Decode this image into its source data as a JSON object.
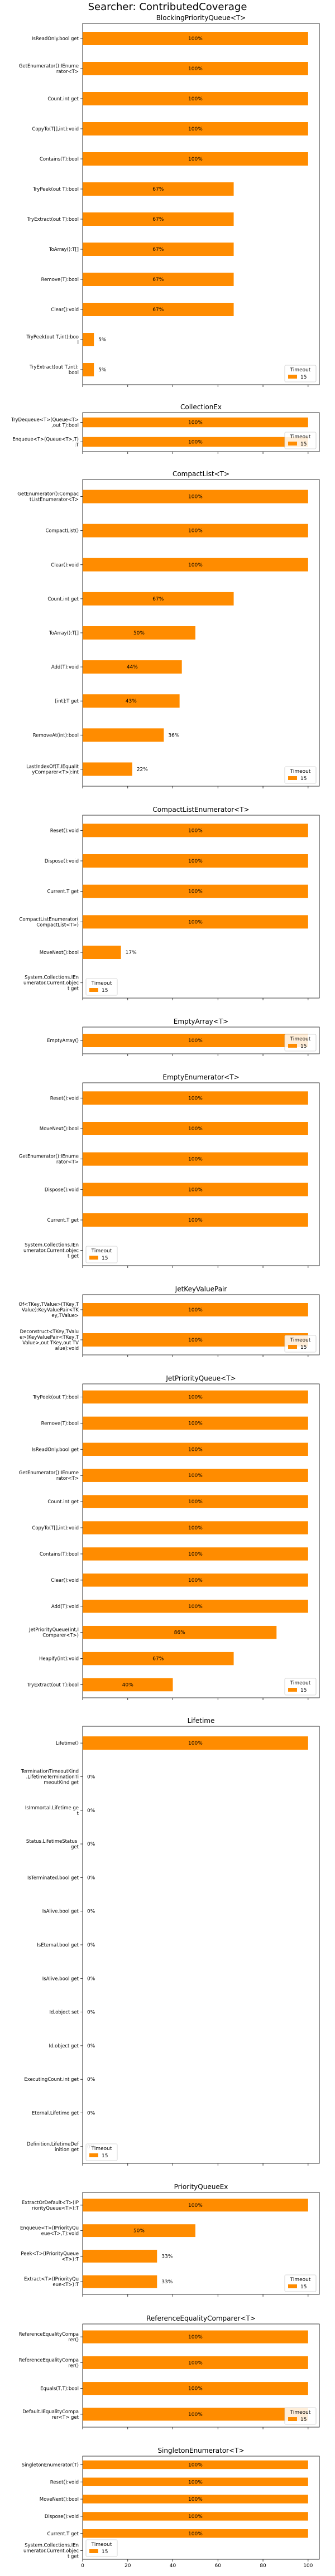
{
  "chart_data": {
    "type": "bar",
    "orientation": "horizontal",
    "title": "Searcher: ContributedCoverage",
    "series_color": "#ff8c00",
    "legend": {
      "title": "Timeout",
      "entries": [
        "15"
      ]
    },
    "xlim": [
      0,
      105
    ],
    "xticks": [
      0,
      20,
      40,
      60,
      80,
      100
    ],
    "panels": [
      {
        "title": "BlockingPriorityQueue<T>",
        "categories": [
          "IsReadOnly.bool get",
          "GetEnumerator():IEnumerator<T>",
          "Count.int get",
          "CopyTo(T[],int):void",
          "Contains(T):bool",
          "TryPeek(out T):bool",
          "TryExtract(out T):bool",
          "ToArray():T[]",
          "Remove(T):bool",
          "Clear():void",
          "TryPeek(out T,int):bool",
          "TryExtract(out T,int):bool"
        ],
        "values": [
          100,
          100,
          100,
          100,
          100,
          67,
          67,
          67,
          67,
          67,
          5,
          5
        ],
        "labels": [
          "100%",
          "100%",
          "100%",
          "100%",
          "100%",
          "67%",
          "67%",
          "67%",
          "67%",
          "67%",
          "5%",
          "5%"
        ]
      },
      {
        "title": "CollectionEx",
        "categories": [
          "TryDequeue<T>(Queue<T>,out T):bool",
          "Enqueue<T>(Queue<T>,T):T"
        ],
        "values": [
          100,
          100
        ],
        "labels": [
          "100%",
          "100%"
        ]
      },
      {
        "title": "CompactList<T>",
        "categories": [
          "GetEnumerator():CompactListEnumerator<T>",
          "CompactList()",
          "Clear():void",
          "Count.int get",
          "ToArray():T[]",
          "Add(T):void",
          "[int]:T get",
          "RemoveAt(int):bool",
          "LastIndexOf(T,IEqualityComparer<T>):int"
        ],
        "values": [
          100,
          100,
          100,
          67,
          50,
          44,
          43,
          36,
          22
        ],
        "labels": [
          "100%",
          "100%",
          "100%",
          "67%",
          "50%",
          "44%",
          "43%",
          "36%",
          "22%"
        ]
      },
      {
        "title": "CompactListEnumerator<T>",
        "categories": [
          "Reset():void",
          "Dispose():void",
          "Current.T get",
          "CompactListEnumerator(CompactList<T>)",
          "MoveNext():bool",
          "System.Collections.IEnumerator.Current.object get"
        ],
        "values": [
          100,
          100,
          100,
          100,
          17,
          0
        ],
        "labels": [
          "100%",
          "100%",
          "100%",
          "100%",
          "17%",
          ""
        ]
      },
      {
        "title": "EmptyArray<T>",
        "categories": [
          "EmptyArray()"
        ],
        "values": [
          100
        ],
        "labels": [
          "100%"
        ]
      },
      {
        "title": "EmptyEnumerator<T>",
        "categories": [
          "Reset():void",
          "MoveNext():bool",
          "GetEnumerator():IEnumerator<T>",
          "Dispose():void",
          "Current.T get",
          "System.Collections.IEnumerator.Current.object get"
        ],
        "values": [
          100,
          100,
          100,
          100,
          100,
          0
        ],
        "labels": [
          "100%",
          "100%",
          "100%",
          "100%",
          "100%",
          ""
        ]
      },
      {
        "title": "JetKeyValuePair",
        "categories": [
          "Of<TKey,TValue>(TKey,TValue):KeyValuePair<TKey,TValue>",
          "Deconstruct<TKey,TValue>(KeyValuePair<TKey,TValue>,out TKey,out TValue):void"
        ],
        "values": [
          100,
          100
        ],
        "labels": [
          "100%",
          "100%"
        ]
      },
      {
        "title": "JetPriorityQueue<T>",
        "categories": [
          "TryPeek(out T):bool",
          "Remove(T):bool",
          "IsReadOnly.bool get",
          "GetEnumerator():IEnumerator<T>",
          "Count.int get",
          "CopyTo(T[],int):void",
          "Contains(T):bool",
          "Clear():void",
          "Add(T):void",
          "JetPriorityQueue(int,IComparer<T>)",
          "Heapify(int):void",
          "TryExtract(out T):bool"
        ],
        "values": [
          100,
          100,
          100,
          100,
          100,
          100,
          100,
          100,
          100,
          86,
          67,
          40
        ],
        "labels": [
          "100%",
          "100%",
          "100%",
          "100%",
          "100%",
          "100%",
          "100%",
          "100%",
          "100%",
          "86%",
          "67%",
          "40%"
        ]
      },
      {
        "title": "Lifetime",
        "categories": [
          "Lifetime()",
          "TerminationTimeoutKind.LifetimeTerminationTimeoutKind get",
          "IsImmortal.Lifetime get",
          "Status.LifetimeStatus get",
          "IsTerminated.bool get",
          "IsAlive.bool get",
          "IsEternal.bool get",
          "IsAlive.bool get",
          "Id.object set",
          "Id.object get",
          "ExecutingCount.int get",
          "Eternal.Lifetime get",
          "Definition.LifetimeDefinition get"
        ],
        "values": [
          100,
          0,
          0,
          0,
          0,
          0,
          0,
          0,
          0,
          0,
          0,
          0,
          0
        ],
        "labels": [
          "100%",
          "0%",
          "0%",
          "0%",
          "0%",
          "0%",
          "0%",
          "0%",
          "0%",
          "0%",
          "0%",
          "0%",
          "0%"
        ]
      },
      {
        "title": "PriorityQueueEx",
        "categories": [
          "ExtractOrDefault<T>(IPriorityQueue<T>):T",
          "Enqueue<T>(IPriorityQueue<T>,T):void",
          "Peek<T>(IPriorityQueue<T>):T",
          "Extract<T>(IPriorityQueue<T>):T"
        ],
        "values": [
          100,
          50,
          33,
          33
        ],
        "labels": [
          "100%",
          "50%",
          "33%",
          "33%"
        ]
      },
      {
        "title": "ReferenceEqualityComparer<T>",
        "categories": [
          "ReferenceEqualityComparer()",
          "ReferenceEqualityComparer()",
          "Equals(T,T):bool",
          "Default.IEqualityComparer<T> get"
        ],
        "values": [
          100,
          100,
          100,
          100
        ],
        "labels": [
          "100%",
          "100%",
          "100%",
          "100%"
        ]
      },
      {
        "title": "SingletonEnumerator<T>",
        "categories": [
          "SingletonEnumerator(T)",
          "Reset():void",
          "MoveNext():bool",
          "Dispose():void",
          "Current.T get",
          "System.Collections.IEnumerator.Current.object get"
        ],
        "values": [
          100,
          100,
          100,
          100,
          100,
          0
        ],
        "labels": [
          "100%",
          "100%",
          "100%",
          "100%",
          "100%",
          ""
        ]
      }
    ]
  }
}
